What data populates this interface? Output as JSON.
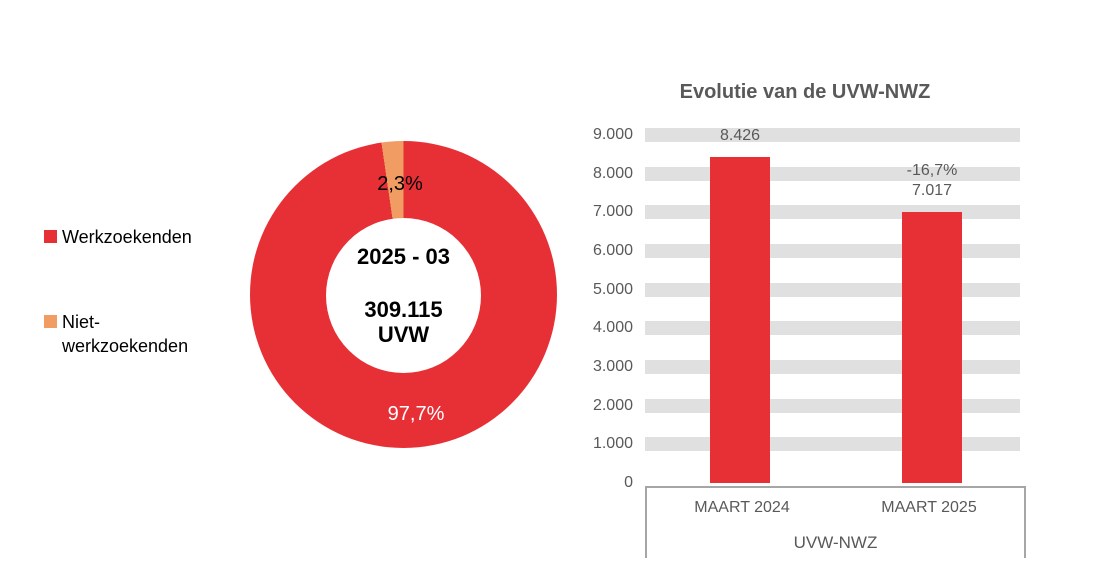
{
  "colors": {
    "red": "#E73036",
    "orange": "#F09C63",
    "band_gray": "#E0E0E0",
    "axis_text": "#595959",
    "box_border": "#A6A6A6"
  },
  "legend": {
    "items": [
      {
        "label": "Werkzoekenden",
        "color": "#E73036"
      },
      {
        "label": "Niet-werkzoekenden",
        "color": "#F09C63"
      }
    ]
  },
  "donut": {
    "center": {
      "period": "2025 - 03",
      "value": "309.115",
      "unit": "UVW"
    },
    "slices": [
      {
        "name": "Werkzoekenden",
        "pct": 97.7,
        "label": "97,7%",
        "color": "#E73036"
      },
      {
        "name": "Niet-werkzoekenden",
        "pct": 2.3,
        "label": "2,3%",
        "color": "#F09C63"
      }
    ]
  },
  "bar_chart": {
    "title": "Evolutie van de UVW-NWZ",
    "y_ticks": [
      "9.000",
      "8.000",
      "7.000",
      "6.000",
      "5.000",
      "4.000",
      "3.000",
      "2.000",
      "1.000",
      "0"
    ],
    "axis_max": 9000,
    "bars": [
      {
        "category": "MAART 2024",
        "value": 8426,
        "label": "8.426"
      },
      {
        "category": "MAART 2025",
        "value": 7017,
        "label": "7.017",
        "delta_label": "-16,7%"
      }
    ],
    "x_axis_group_label": "UVW-NWZ"
  },
  "chart_data": [
    {
      "type": "pie",
      "donut": true,
      "labels": [
        "Werkzoekenden",
        "Niet-werkzoekenden"
      ],
      "values": [
        97.7,
        2.3
      ],
      "value_labels": [
        "97,7%",
        "2,3%"
      ],
      "colors": [
        "#E73036",
        "#F09C63"
      ],
      "center_text": [
        "2025 - 03",
        "309.115",
        "UVW"
      ],
      "legend_position": "left",
      "start_angle_deg": 0,
      "direction": "clockwise"
    },
    {
      "type": "bar",
      "title": "Evolutie van de UVW-NWZ",
      "categories": [
        "MAART 2024",
        "MAART 2025"
      ],
      "values": [
        8426,
        7017
      ],
      "data_labels": [
        "8.426",
        "7.017"
      ],
      "annotations": [
        {
          "target": "MAART 2025",
          "text": "-16,7%"
        }
      ],
      "xlabel": "UVW-NWZ",
      "ylabel": "",
      "ylim": [
        0,
        9000
      ],
      "ytick_step": 1000,
      "bar_color": "#E73036",
      "grid": "horizontal-bands",
      "legend_position": "none"
    }
  ]
}
